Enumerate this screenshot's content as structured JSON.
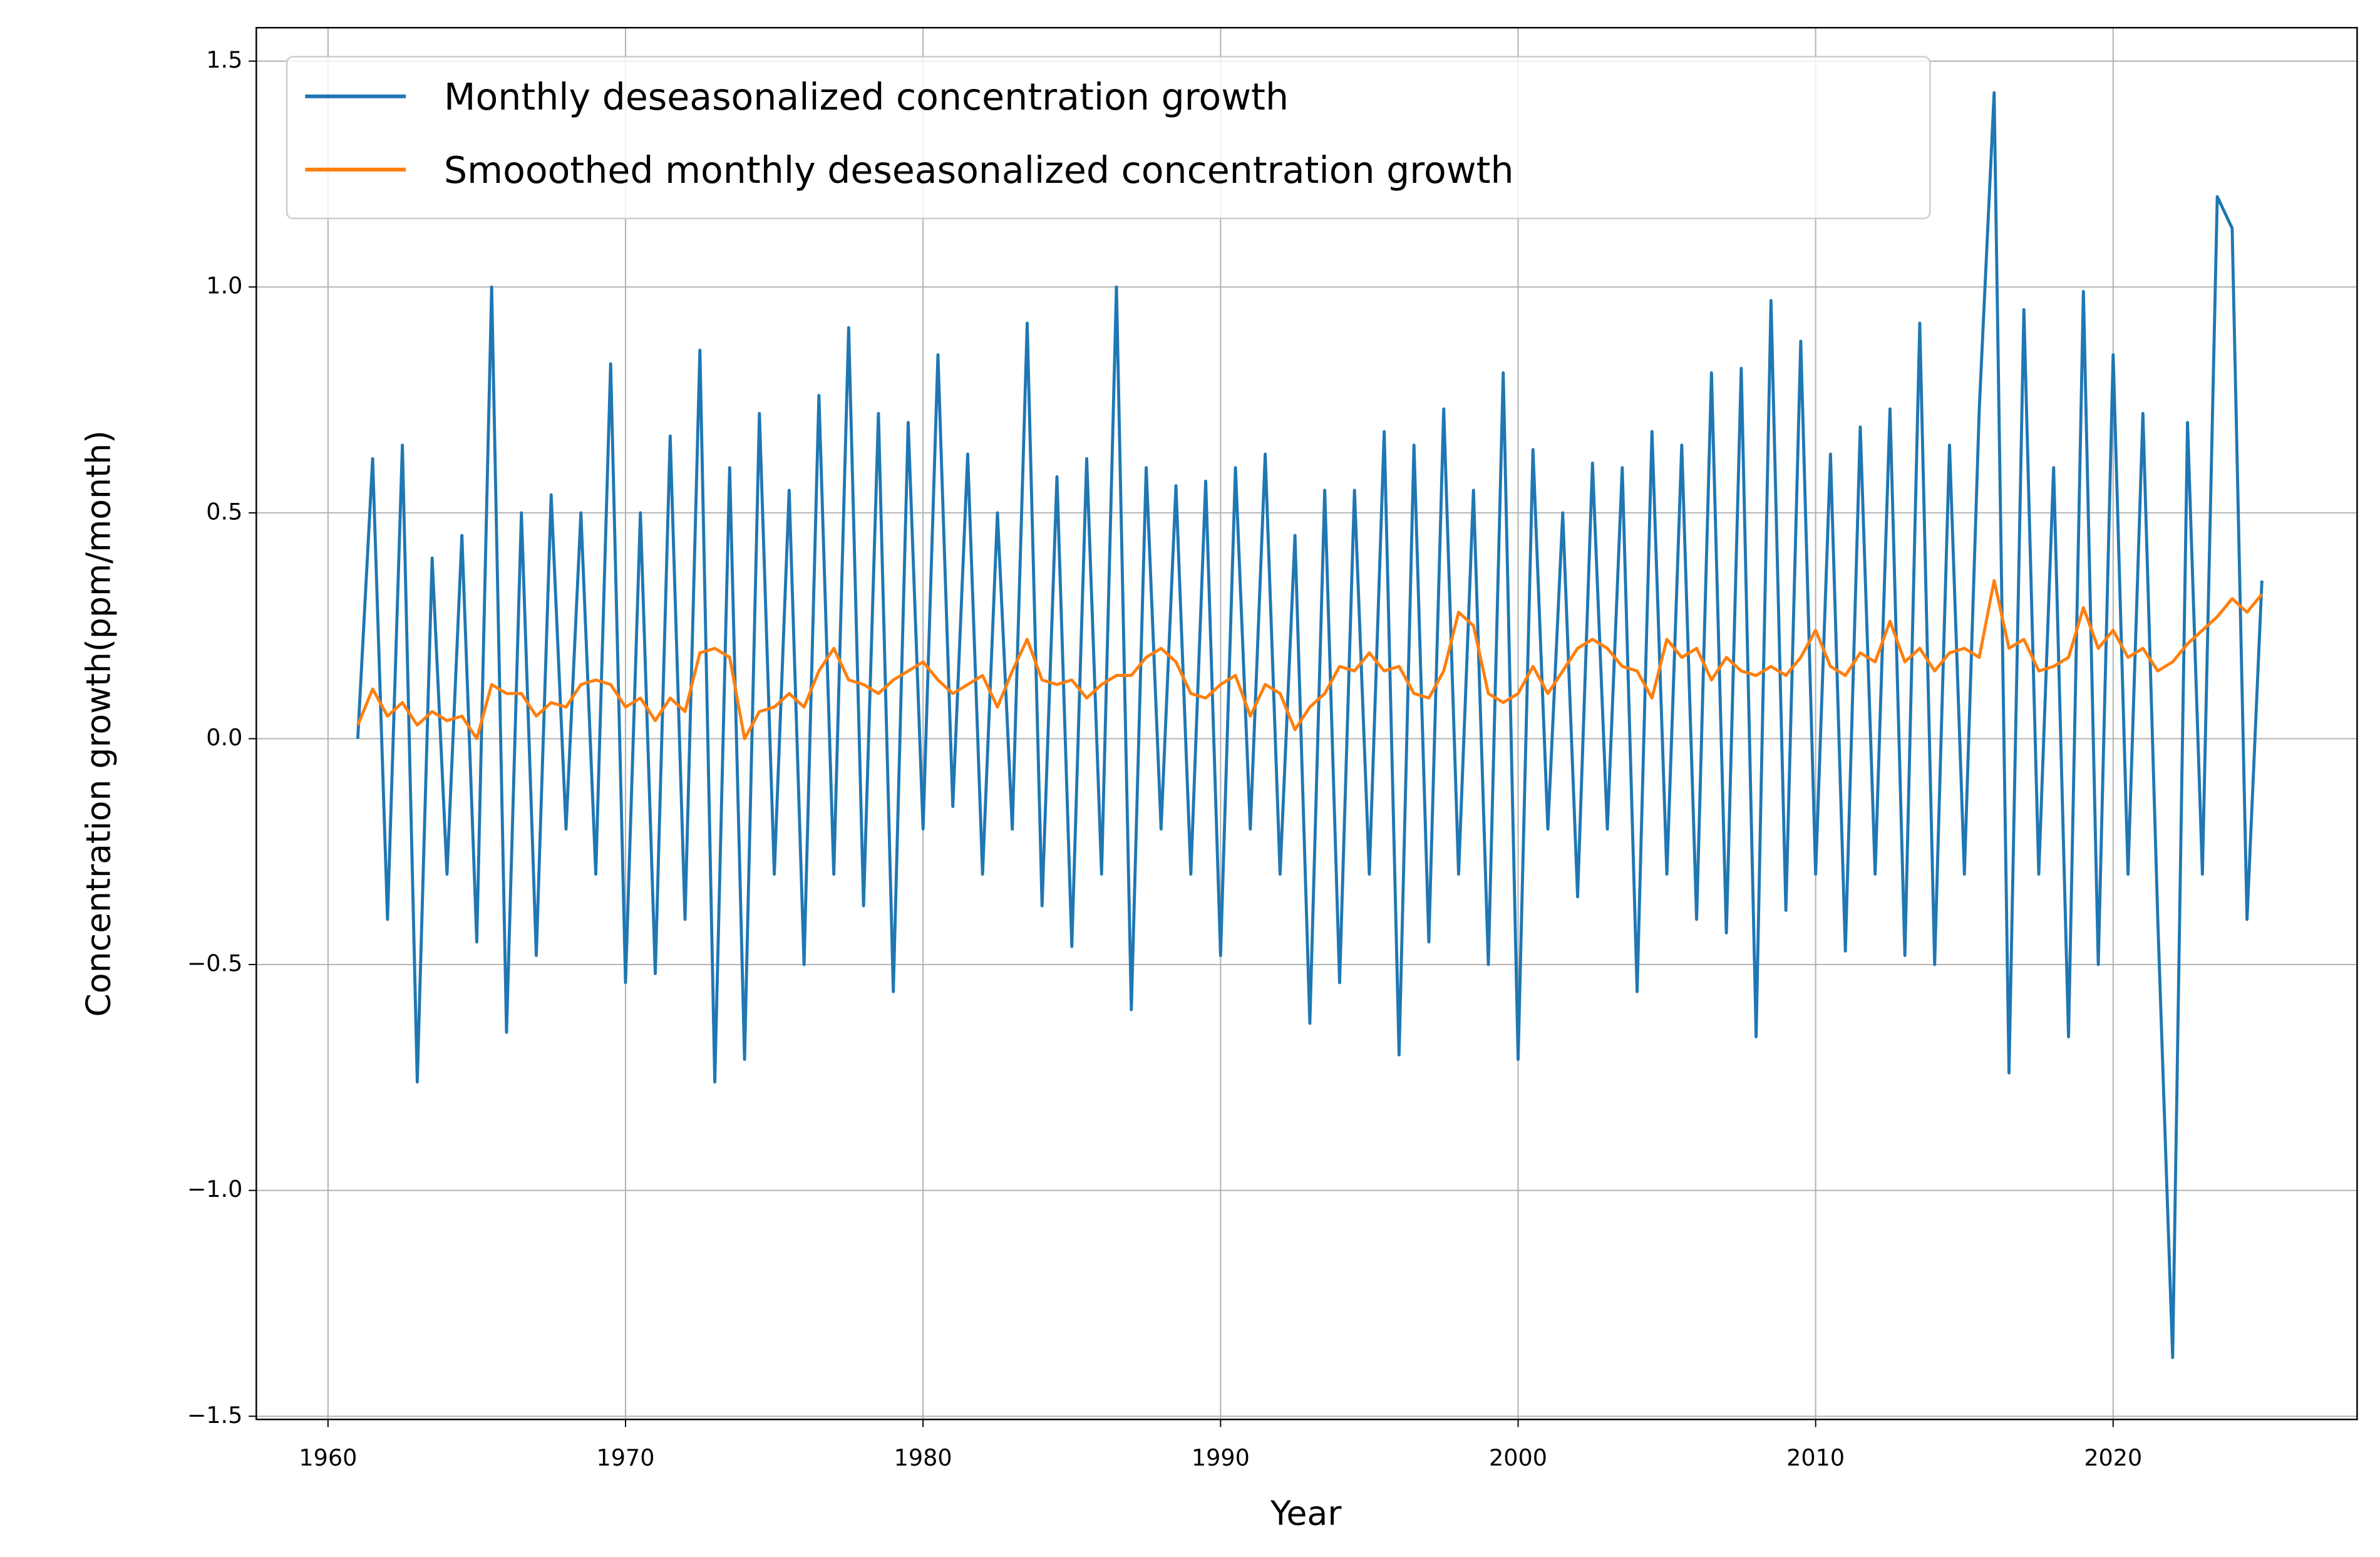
{
  "chart_data": {
    "type": "line",
    "xlabel": "Year",
    "ylabel": "Concentration growth(ppm/month)",
    "xlim": [
      1957.59,
      2028.2
    ],
    "ylim": [
      -1.507,
      1.574
    ],
    "xticks": [
      1960,
      1970,
      1980,
      1990,
      2000,
      2010,
      2020
    ],
    "yticks": [
      {
        "value": -1.5,
        "label": "−1.5"
      },
      {
        "value": -1.0,
        "label": "−1.0"
      },
      {
        "value": -0.5,
        "label": "−0.5"
      },
      {
        "value": 0,
        "label": "0.0"
      },
      {
        "value": 0.5,
        "label": "0.5"
      },
      {
        "value": 1.0,
        "label": "1.0"
      },
      {
        "value": 1.5,
        "label": "1.5"
      }
    ],
    "grid": true,
    "legend": "upper left",
    "x": [
      1961,
      1961.5,
      1962,
      1962.5,
      1963,
      1963.5,
      1964,
      1964.5,
      1965,
      1965.5,
      1966,
      1966.5,
      1967,
      1967.5,
      1968,
      1968.5,
      1969,
      1969.5,
      1970,
      1970.5,
      1971,
      1971.5,
      1972,
      1972.5,
      1973,
      1973.5,
      1974,
      1974.5,
      1975,
      1975.5,
      1976,
      1976.5,
      1977,
      1977.5,
      1978,
      1978.5,
      1979,
      1979.5,
      1980,
      1980.5,
      1981,
      1981.5,
      1982,
      1982.5,
      1983,
      1983.5,
      1984,
      1984.5,
      1985,
      1985.5,
      1986,
      1986.5,
      1987,
      1987.5,
      1988,
      1988.5,
      1989,
      1989.5,
      1990,
      1990.5,
      1991,
      1991.5,
      1992,
      1992.5,
      1993,
      1993.5,
      1994,
      1994.5,
      1995,
      1995.5,
      1996,
      1996.5,
      1997,
      1997.5,
      1998,
      1998.5,
      1999,
      1999.5,
      2000,
      2000.5,
      2001,
      2001.5,
      2002,
      2002.5,
      2003,
      2003.5,
      2004,
      2004.5,
      2005,
      2005.5,
      2006,
      2006.5,
      2007,
      2007.5,
      2008,
      2008.5,
      2009,
      2009.5,
      2010,
      2010.5,
      2011,
      2011.5,
      2012,
      2012.5,
      2013,
      2013.5,
      2014,
      2014.5,
      2015,
      2015.5,
      2016,
      2016.5,
      2017,
      2017.5,
      2018,
      2018.5,
      2019,
      2019.5,
      2020,
      2020.5,
      2021,
      2021.5,
      2022,
      2022.5,
      2023,
      2023.5,
      2024,
      2024.5,
      2025
    ],
    "series": [
      {
        "name": "Monthly deseasonalized concentration growth",
        "color": "#1f77b4",
        "values": [
          0.0,
          0.62,
          -0.4,
          0.65,
          -0.76,
          0.4,
          -0.3,
          0.45,
          -0.45,
          1.0,
          -0.65,
          0.5,
          -0.48,
          0.54,
          -0.2,
          0.5,
          -0.3,
          0.83,
          -0.54,
          0.5,
          -0.52,
          0.67,
          -0.4,
          0.86,
          -0.76,
          0.6,
          -0.71,
          0.72,
          -0.3,
          0.55,
          -0.5,
          0.76,
          -0.3,
          0.91,
          -0.37,
          0.72,
          -0.56,
          0.7,
          -0.2,
          0.85,
          -0.15,
          0.63,
          -0.3,
          0.5,
          -0.2,
          0.92,
          -0.37,
          0.58,
          -0.46,
          0.62,
          -0.3,
          1.0,
          -0.6,
          0.6,
          -0.2,
          0.56,
          -0.3,
          0.57,
          -0.48,
          0.6,
          -0.2,
          0.63,
          -0.3,
          0.45,
          -0.63,
          0.55,
          -0.54,
          0.55,
          -0.3,
          0.68,
          -0.7,
          0.65,
          -0.45,
          0.73,
          -0.3,
          0.55,
          -0.5,
          0.81,
          -0.71,
          0.64,
          -0.2,
          0.5,
          -0.35,
          0.61,
          -0.2,
          0.6,
          -0.56,
          0.68,
          -0.3,
          0.65,
          -0.4,
          0.81,
          -0.43,
          0.82,
          -0.66,
          0.97,
          -0.38,
          0.88,
          -0.3,
          0.63,
          -0.47,
          0.69,
          -0.3,
          0.73,
          -0.48,
          0.92,
          -0.5,
          0.65,
          -0.3,
          0.73,
          1.43,
          -0.74,
          0.95,
          -0.3,
          0.6,
          -0.66,
          0.99,
          -0.5,
          0.85,
          -0.3,
          0.72,
          -0.4,
          -1.37,
          0.7,
          -0.3,
          1.2,
          1.13,
          -0.4,
          0.35
        ]
      },
      {
        "name": "Smooothed monthly deseasonalized concentration growth",
        "color": "#ff7f0e",
        "values": [
          0.03,
          0.11,
          0.05,
          0.08,
          0.03,
          0.06,
          0.04,
          0.05,
          0.0,
          0.12,
          0.1,
          0.1,
          0.05,
          0.08,
          0.07,
          0.12,
          0.13,
          0.12,
          0.07,
          0.09,
          0.04,
          0.09,
          0.06,
          0.19,
          0.2,
          0.18,
          0.0,
          0.06,
          0.07,
          0.1,
          0.07,
          0.15,
          0.2,
          0.13,
          0.12,
          0.1,
          0.13,
          0.15,
          0.17,
          0.13,
          0.1,
          0.12,
          0.14,
          0.07,
          0.15,
          0.22,
          0.13,
          0.12,
          0.13,
          0.09,
          0.12,
          0.14,
          0.14,
          0.18,
          0.2,
          0.17,
          0.1,
          0.09,
          0.12,
          0.14,
          0.05,
          0.12,
          0.1,
          0.02,
          0.07,
          0.1,
          0.16,
          0.15,
          0.19,
          0.15,
          0.16,
          0.1,
          0.09,
          0.15,
          0.28,
          0.25,
          0.1,
          0.08,
          0.1,
          0.16,
          0.1,
          0.15,
          0.2,
          0.22,
          0.2,
          0.16,
          0.15,
          0.09,
          0.22,
          0.18,
          0.2,
          0.13,
          0.18,
          0.15,
          0.14,
          0.16,
          0.14,
          0.18,
          0.24,
          0.16,
          0.14,
          0.19,
          0.17,
          0.26,
          0.17,
          0.2,
          0.15,
          0.19,
          0.2,
          0.18,
          0.35,
          0.2,
          0.22,
          0.15,
          0.16,
          0.18,
          0.29,
          0.2,
          0.24,
          0.18,
          0.2,
          0.15,
          0.17,
          0.21,
          0.24,
          0.27,
          0.31,
          0.28,
          0.32
        ]
      }
    ]
  }
}
